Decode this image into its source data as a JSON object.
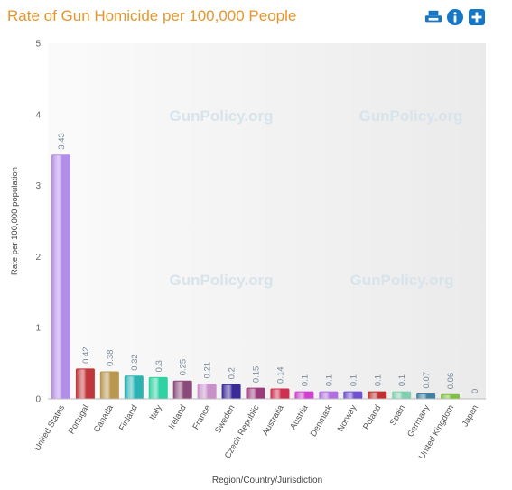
{
  "page": {
    "title": "Rate of Gun Homicide per 100,000 People",
    "watermark": "GunPolicy.org"
  },
  "toolbar": {
    "icons": [
      "print-icon",
      "info-icon",
      "plus-icon"
    ]
  },
  "colors": {
    "title": "#e6962c",
    "toolbar_icon": "#1577c5"
  },
  "chart_data": {
    "type": "bar",
    "title": "Rate of Gun Homicide per 100,000 People",
    "xlabel": "Region/Country/Jurisdiction",
    "ylabel": "Rate per 100,000 population",
    "ylim": [
      0,
      5
    ],
    "yticks": [
      0,
      1,
      2,
      3,
      4,
      5
    ],
    "grid": false,
    "categories": [
      "United States",
      "Portugal",
      "Canada",
      "Finland",
      "Italy",
      "Ireland",
      "France",
      "Sweden",
      "Czech Republic",
      "Australia",
      "Austria",
      "Denmark",
      "Norway",
      "Poland",
      "Spain",
      "Germany",
      "United Kingdom",
      "Japan"
    ],
    "values": [
      3.43,
      0.42,
      0.38,
      0.32,
      0.3,
      0.25,
      0.21,
      0.2,
      0.15,
      0.14,
      0.1,
      0.1,
      0.1,
      0.1,
      0.1,
      0.07,
      0.06,
      0
    ],
    "value_labels": [
      "3.43",
      "0.42",
      "0.38",
      "0.32",
      "0.3",
      "0.25",
      "0.21",
      "0.2",
      "0.15",
      "0.14",
      "0.1",
      "0.1",
      "0.1",
      "0.1",
      "0.1",
      "0.07",
      "0.06",
      "0"
    ],
    "bar_colors": [
      "#b38ee8",
      "#c0363a",
      "#b89850",
      "#2bb3b3",
      "#2fd2a2",
      "#8a4a7a",
      "#c890c8",
      "#3b2a9a",
      "#9a3a7a",
      "#d03050",
      "#d040d0",
      "#b070e0",
      "#7050d0",
      "#c03030",
      "#80d0b0",
      "#4080a0",
      "#80c040",
      "#a0a0a0"
    ]
  }
}
